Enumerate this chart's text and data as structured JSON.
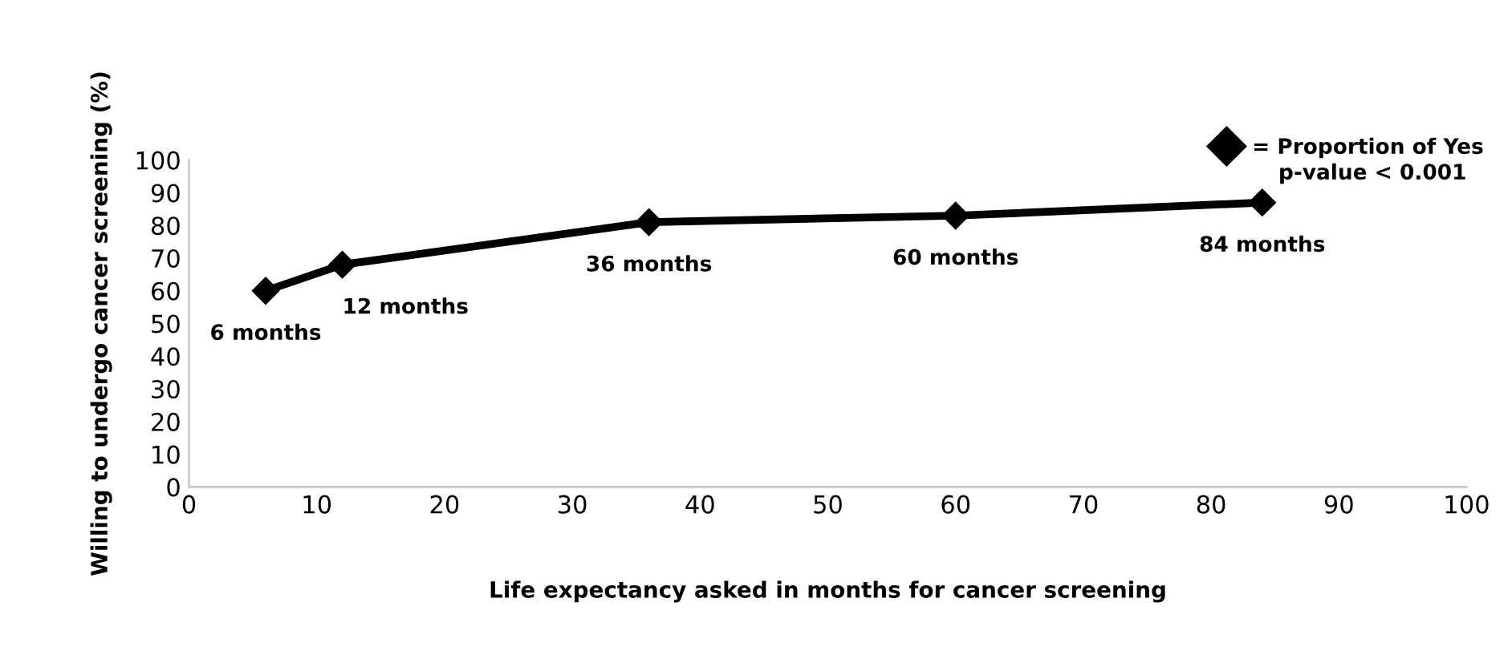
{
  "chart_data": {
    "type": "line",
    "xlabel": "Life expectancy asked in months for cancer screening",
    "ylabel": "Willing to undergo cancer screening (%)",
    "x": [
      6,
      12,
      36,
      60,
      84
    ],
    "series": [
      {
        "name": "= Proportion of Yes",
        "color": "#000000",
        "values": [
          60,
          68,
          81,
          83,
          87
        ]
      }
    ],
    "xlim": [
      0,
      100
    ],
    "xticks": [
      0,
      10,
      20,
      30,
      40,
      50,
      60,
      70,
      80,
      90,
      100
    ],
    "ylim": [
      0,
      100
    ],
    "yticks": [
      0,
      10,
      20,
      30,
      40,
      50,
      60,
      70,
      80,
      90,
      100
    ],
    "marker": "diamond",
    "line_style": "solid",
    "grid": false,
    "legend": "top right",
    "annotations": [
      {
        "text": "6 months",
        "x": 6,
        "y": 60
      },
      {
        "text": "12 months",
        "x": 12,
        "y": 68
      },
      {
        "text": "36 months",
        "x": 36,
        "y": 81
      },
      {
        "text": "60 months",
        "x": 60,
        "y": 83
      },
      {
        "text": "84 months",
        "x": 84,
        "y": 87
      },
      "p-value < 0.001"
    ]
  }
}
